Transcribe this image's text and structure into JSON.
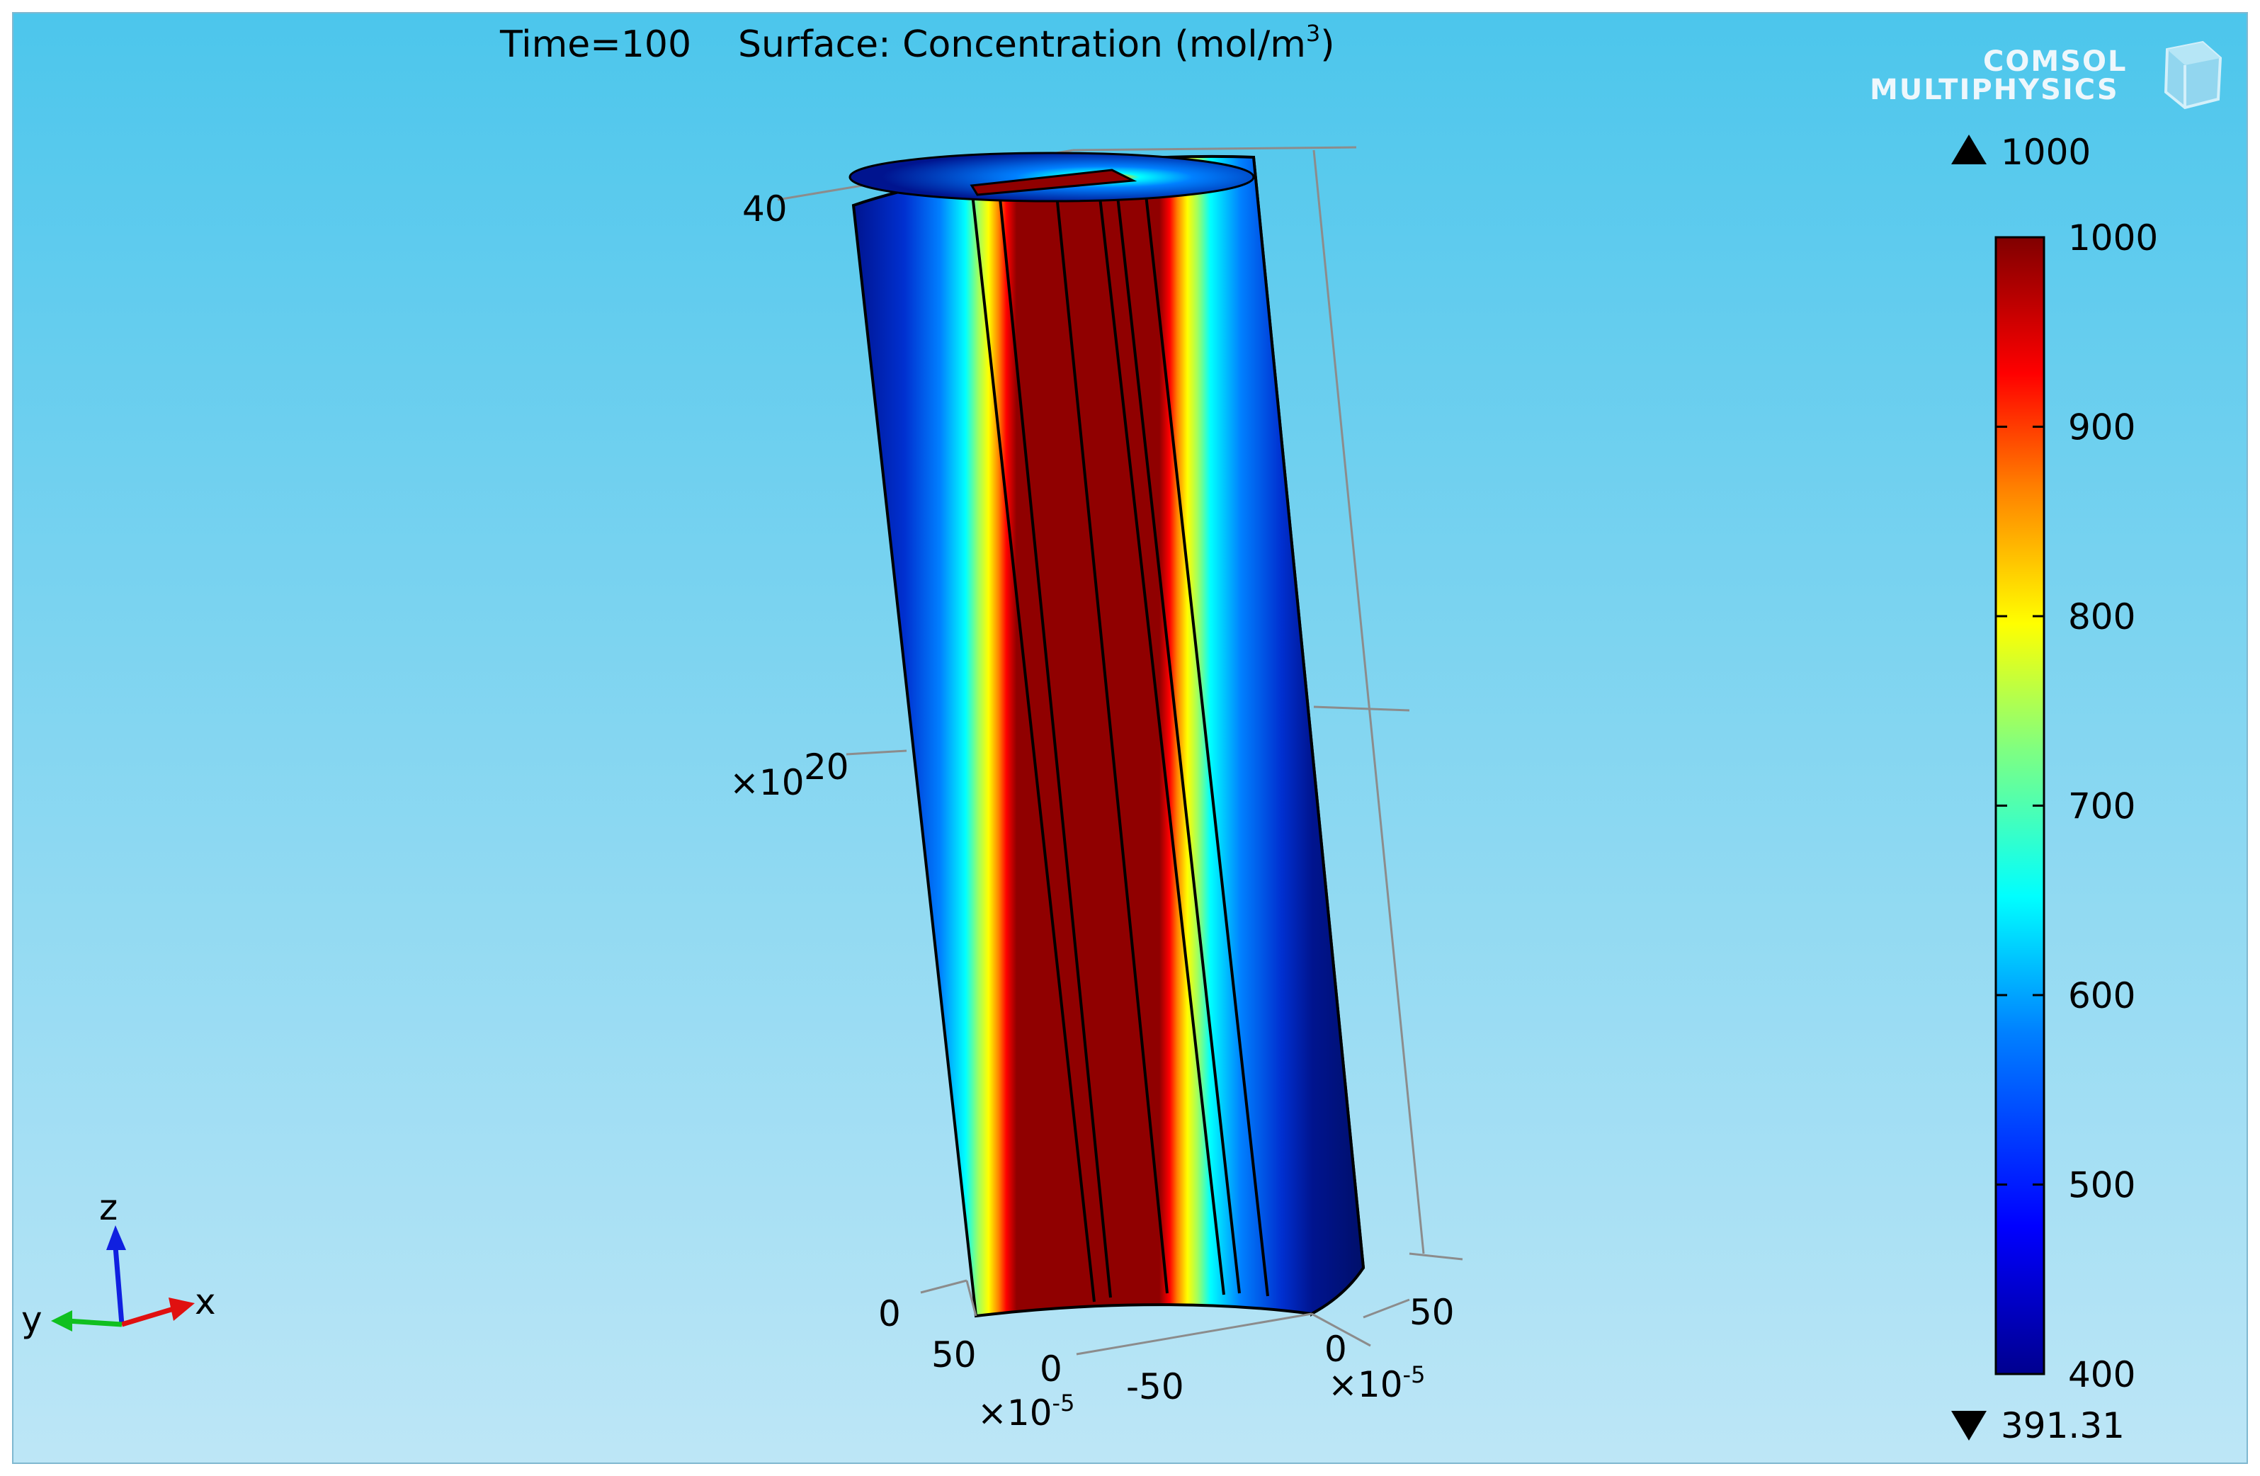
{
  "chart_data": {
    "type": "heatmap",
    "title_time": "Time=100",
    "title_surface": "Surface: Concentration (mol/m",
    "title_unit_exp": "3",
    "title_close": ")",
    "branding": {
      "line1": "COMSOL",
      "line2": "MULTIPHYSICS"
    },
    "z_ticks": [
      "0",
      "40"
    ],
    "z_ticks_overlap": [
      "×10",
      "20"
    ],
    "y_ticks": [
      "50",
      "0",
      "-50"
    ],
    "y_multiplier": "×10",
    "y_multiplier_exp": "-5",
    "x_ticks": [
      "50",
      "0"
    ],
    "x_multiplier": "×10",
    "x_multiplier_exp": "-5",
    "triad": {
      "z": "z",
      "y": "y",
      "x": "x"
    },
    "colorbar": {
      "max_marker": "1000",
      "min_marker": "391.31",
      "ticks": [
        "1000",
        "900",
        "800",
        "700",
        "600",
        "500",
        "400"
      ],
      "range": [
        391.31,
        1000
      ],
      "tick_values": [
        1000,
        900,
        800,
        700,
        600,
        500,
        400
      ],
      "colormap": [
        "#00008f",
        "#0000ff",
        "#0080ff",
        "#00ffff",
        "#80ff80",
        "#ffff00",
        "#ff8000",
        "#ff0000",
        "#800000"
      ]
    },
    "bands": [
      {
        "name": "outer-left",
        "value": 430
      },
      {
        "name": "mid-left",
        "value": 600
      },
      {
        "name": "edge-left",
        "value": 850
      },
      {
        "name": "core",
        "value": 1000
      },
      {
        "name": "edge-right",
        "value": 850
      },
      {
        "name": "mid-right",
        "value": 600
      },
      {
        "name": "outer-right",
        "value": 430
      },
      {
        "name": "shaded-side",
        "value": 400
      }
    ]
  }
}
